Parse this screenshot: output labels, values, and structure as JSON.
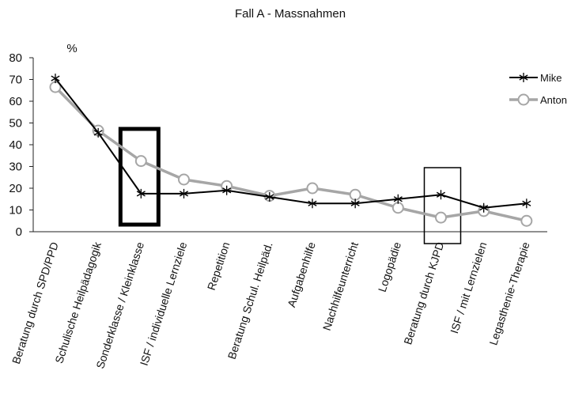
{
  "chart_data": {
    "type": "line",
    "title": "Fall A - Massnahmen",
    "ylabel": "%",
    "xlabel": "",
    "ylim": [
      0,
      80
    ],
    "yticks": [
      0,
      10,
      20,
      30,
      40,
      50,
      60,
      70,
      80
    ],
    "grid": false,
    "legend_position": "right",
    "categories": [
      "Beratung durch SPD/PPD",
      "Schulische Heilpädagogik",
      "Sonderklasse / Kleinklasse",
      "ISF / individuelle Lernziele",
      "Repetition",
      "Beratung Schul. Heilpäd.",
      "Aufgabenhilfe",
      "Nachhilfeunterricht",
      "Logopädie",
      "Beratung durch KJPD",
      "ISF / mit Lernzielen",
      "Legasthenie-Therapie"
    ],
    "series": [
      {
        "name": "Mike",
        "color": "#000000",
        "marker": "asterisk",
        "values": [
          70.5,
          45.5,
          17.5,
          17.5,
          19,
          16,
          13,
          13,
          15,
          17,
          11,
          13
        ]
      },
      {
        "name": "Anton",
        "color": "#a6a6a6",
        "marker": "circle",
        "values": [
          66.5,
          46.5,
          32.5,
          24,
          21,
          16.5,
          20,
          17,
          11,
          6.5,
          9.5,
          5
        ]
      }
    ],
    "highlight_boxes": [
      {
        "category": "Sonderklasse / Kleinklasse",
        "style": "thick"
      },
      {
        "category": "Beratung durch KJPD",
        "style": "thin"
      }
    ]
  }
}
